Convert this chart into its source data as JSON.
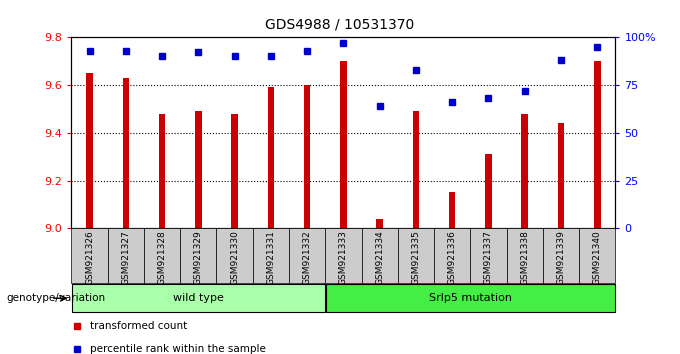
{
  "title": "GDS4988 / 10531370",
  "samples": [
    "GSM921326",
    "GSM921327",
    "GSM921328",
    "GSM921329",
    "GSM921330",
    "GSM921331",
    "GSM921332",
    "GSM921333",
    "GSM921334",
    "GSM921335",
    "GSM921336",
    "GSM921337",
    "GSM921338",
    "GSM921339",
    "GSM921340"
  ],
  "transformed_counts": [
    9.65,
    9.63,
    9.48,
    9.49,
    9.48,
    9.59,
    9.6,
    9.7,
    9.04,
    9.49,
    9.15,
    9.31,
    9.48,
    9.44,
    9.7
  ],
  "percentile_ranks": [
    93,
    93,
    90,
    92,
    90,
    90,
    93,
    97,
    64,
    83,
    66,
    68,
    72,
    88,
    95
  ],
  "ylim_left": [
    9.0,
    9.8
  ],
  "ylim_right": [
    0,
    100
  ],
  "yticks_left": [
    9.0,
    9.2,
    9.4,
    9.6,
    9.8
  ],
  "yticks_right": [
    0,
    25,
    50,
    75,
    100
  ],
  "ytick_labels_right": [
    "0",
    "25",
    "50",
    "75",
    "100%"
  ],
  "bar_color": "#cc0000",
  "dot_color": "#0000cc",
  "bar_bottom": 9.0,
  "wild_type_samples": 7,
  "group_labels": [
    "wild type",
    "Srlp5 mutation"
  ],
  "group_color_wt": "#aaffaa",
  "group_color_mut": "#44ee44",
  "legend_bar_label": "transformed count",
  "legend_dot_label": "percentile rank within the sample",
  "genotype_label": "genotype/variation",
  "title_fontsize": 10,
  "tick_fontsize": 8,
  "axis_bg_color": "#ffffff",
  "xtick_bg_color": "#cccccc",
  "grid_linestyle": "dotted"
}
